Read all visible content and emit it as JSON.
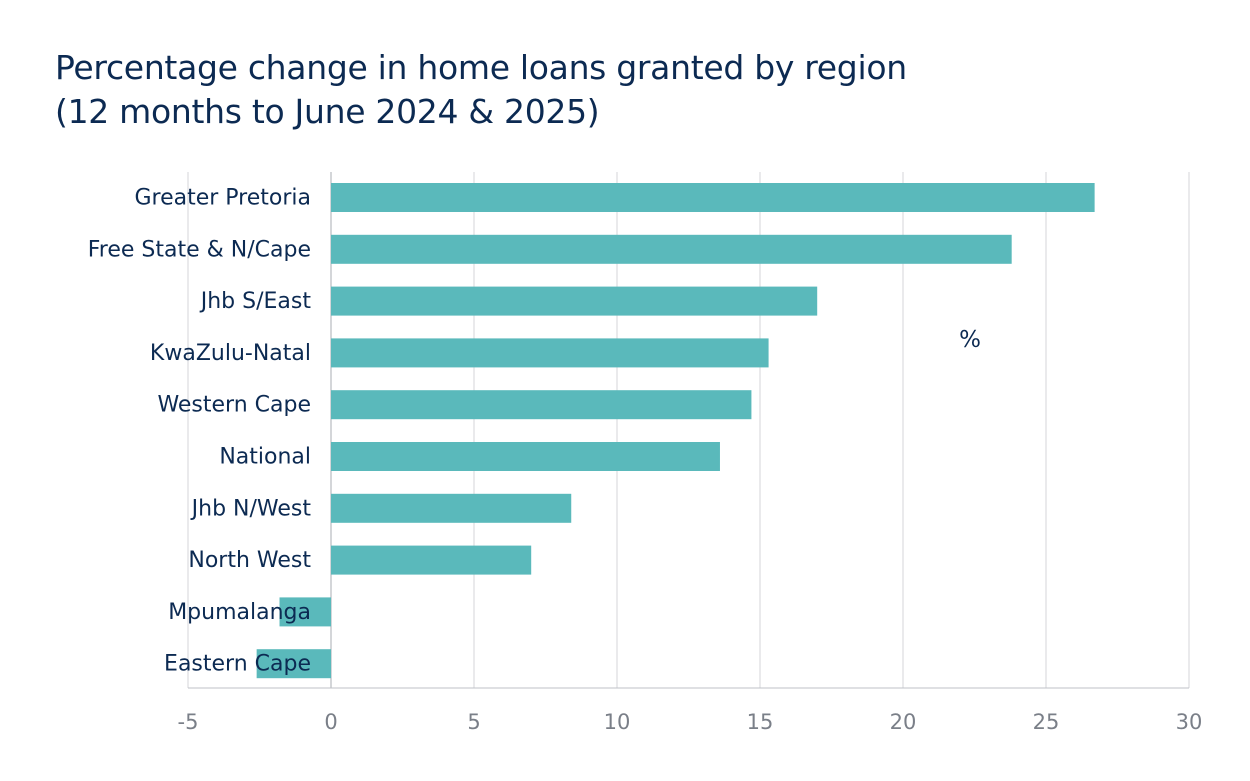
{
  "chart_data": {
    "type": "bar",
    "orientation": "horizontal",
    "title": "Percentage change in home loans granted by region",
    "subtitle": "(12 months to June 2024 & 2025)",
    "unit_label": "%",
    "categories": [
      "Greater Pretoria",
      "Free State & N/Cape",
      "Jhb S/East",
      "KwaZulu-Natal",
      "Western Cape",
      "National",
      "Jhb N/West",
      "North West",
      "Mpumalanga",
      "Eastern Cape"
    ],
    "values": [
      26.7,
      23.8,
      17.0,
      15.3,
      14.7,
      13.6,
      8.4,
      7.0,
      -1.8,
      -2.6
    ],
    "xlim": [
      -5,
      30
    ],
    "xticks": [
      -5,
      0,
      5,
      10,
      15,
      20,
      25,
      30
    ],
    "grid": "vertical",
    "bar_color": "#5ab9bb",
    "text_color": "#0c2a52",
    "grid_color": "#d4d6d9"
  }
}
